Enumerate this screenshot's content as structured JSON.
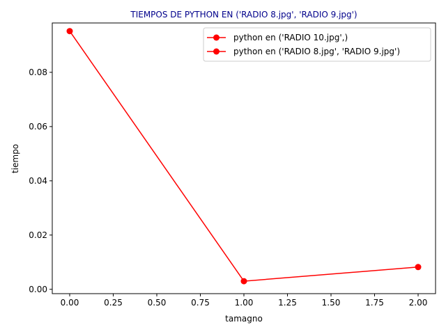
{
  "chart_data": {
    "type": "line",
    "title": "TIEMPOS DE PYTHON EN ('RADIO 8.jpg', 'RADIO 9.jpg')",
    "title_color": "#00008b",
    "xlabel": "tamagno",
    "ylabel": "tiempo",
    "xlim": [
      -0.1,
      2.1
    ],
    "ylim": [
      -0.0016,
      0.0982
    ],
    "x_ticks": [
      0.0,
      0.25,
      0.5,
      0.75,
      1.0,
      1.25,
      1.5,
      1.75,
      2.0
    ],
    "x_tick_labels": [
      "0.00",
      "0.25",
      "0.50",
      "0.75",
      "1.00",
      "1.25",
      "1.50",
      "1.75",
      "2.00"
    ],
    "y_ticks": [
      0.0,
      0.02,
      0.04,
      0.06,
      0.08
    ],
    "y_tick_labels": [
      "0.00",
      "0.02",
      "0.04",
      "0.06",
      "0.08"
    ],
    "grid": false,
    "legend_position": "top-right",
    "series": [
      {
        "name": "python en ('RADIO 10.jpg',)",
        "color": "#ff0000",
        "marker": "circle",
        "x": [],
        "y": []
      },
      {
        "name": "python en ('RADIO 8.jpg', 'RADIO 9.jpg')",
        "color": "#ff0000",
        "marker": "circle",
        "x": [
          0,
          1,
          2
        ],
        "y": [
          0.0952,
          0.003,
          0.0082
        ]
      }
    ]
  }
}
